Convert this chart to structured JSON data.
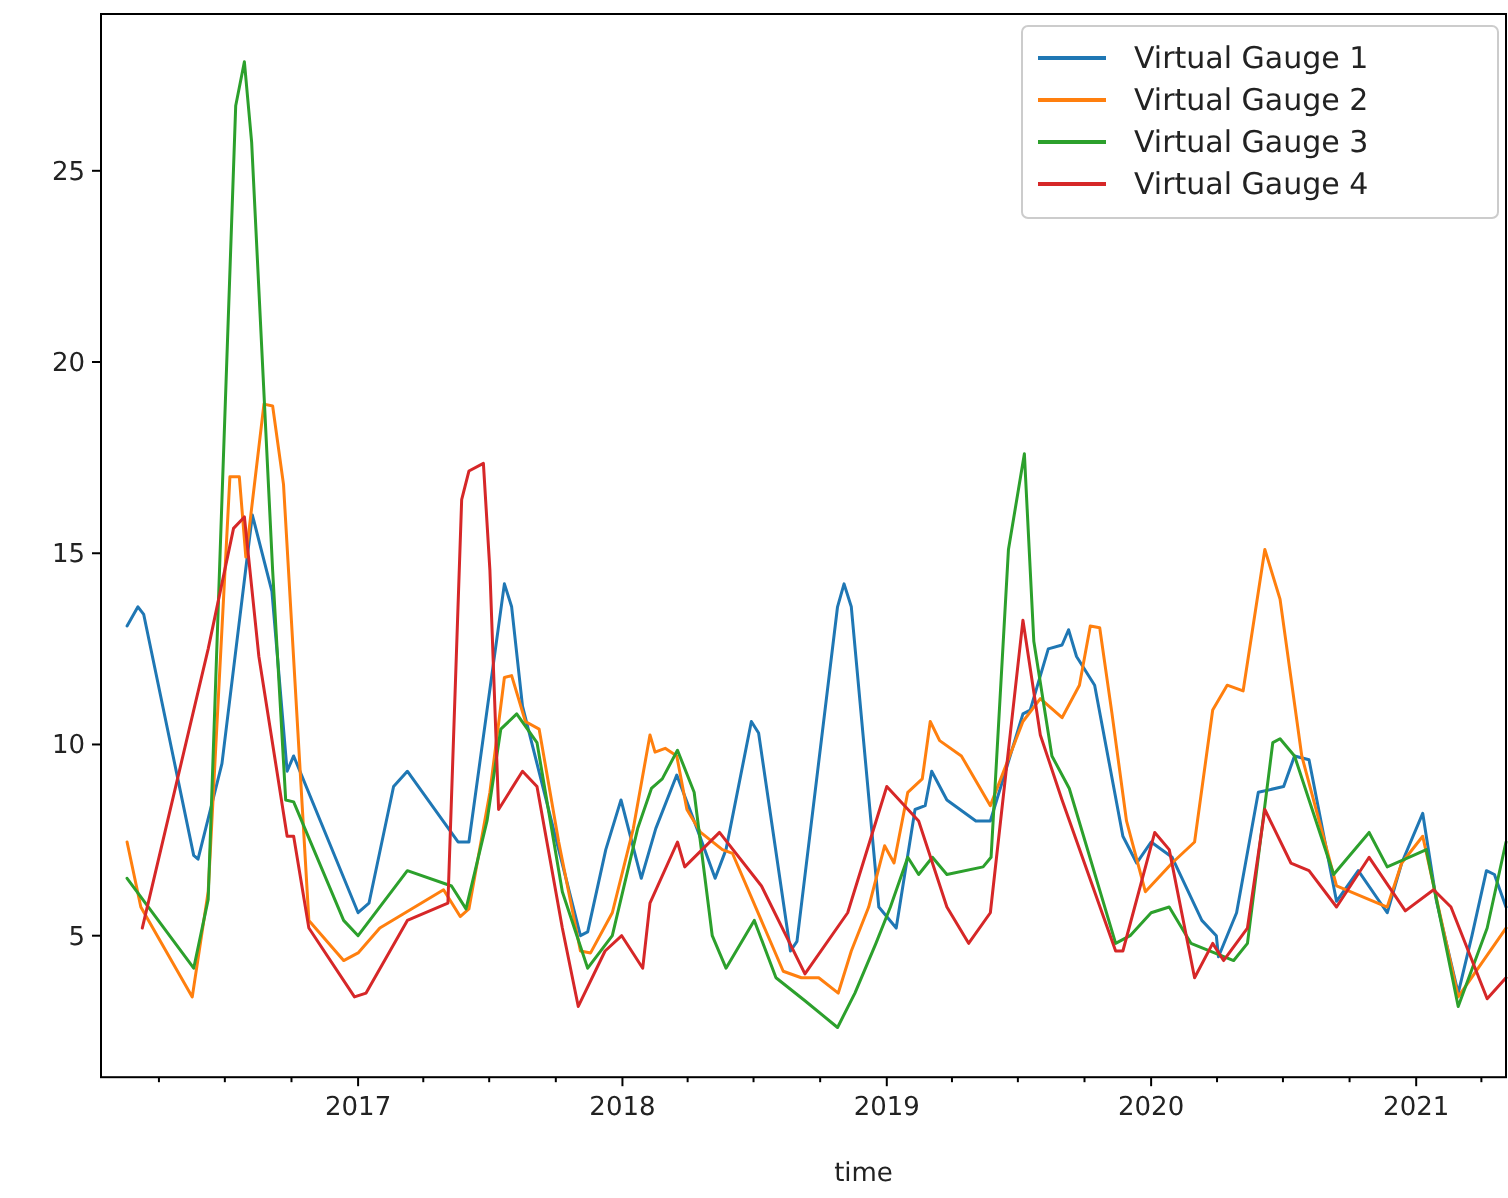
{
  "chart_data": {
    "type": "line",
    "xlabel": "time",
    "legend": "top right",
    "line_style": "solid",
    "marker": "none",
    "xlim": [
      "2016-01-12",
      "2021-05-05"
    ],
    "ylim": [
      1.3,
      29.1
    ],
    "yticks": [
      5,
      10,
      15,
      20,
      25
    ],
    "xticks": [
      {
        "value": "2016-04-01",
        "label": null
      },
      {
        "value": "2016-07-01",
        "label": null
      },
      {
        "value": "2016-10-01",
        "label": null
      },
      {
        "value": "2017-01-01",
        "label": "2017"
      },
      {
        "value": "2017-04-01",
        "label": null
      },
      {
        "value": "2017-07-01",
        "label": null
      },
      {
        "value": "2017-10-01",
        "label": null
      },
      {
        "value": "2018-01-01",
        "label": "2018"
      },
      {
        "value": "2018-04-01",
        "label": null
      },
      {
        "value": "2018-07-01",
        "label": null
      },
      {
        "value": "2018-10-01",
        "label": null
      },
      {
        "value": "2019-01-01",
        "label": "2019"
      },
      {
        "value": "2019-04-01",
        "label": null
      },
      {
        "value": "2019-07-01",
        "label": null
      },
      {
        "value": "2019-10-01",
        "label": null
      },
      {
        "value": "2020-01-01",
        "label": "2020"
      },
      {
        "value": "2020-04-01",
        "label": null
      },
      {
        "value": "2020-07-01",
        "label": null
      },
      {
        "value": "2020-10-01",
        "label": null
      },
      {
        "value": "2021-01-01",
        "label": "2021"
      },
      {
        "value": "2021-04-01",
        "label": null
      }
    ],
    "series": [
      {
        "name": "Virtual Gauge 1",
        "color": "#1f77b4",
        "x": [
          "2016-02-17",
          "2016-03-03",
          "2016-03-11",
          "2016-05-19",
          "2016-05-25",
          "2016-06-27",
          "2016-08-08",
          "2016-09-04",
          "2016-09-25",
          "2016-10-04",
          "2017-01-01",
          "2017-01-16",
          "2017-02-19",
          "2017-03-10",
          "2017-05-19",
          "2017-06-03",
          "2017-07-22",
          "2017-08-01",
          "2017-08-16",
          "2017-11-04",
          "2017-11-14",
          "2017-12-09",
          "2017-12-30",
          "2018-01-27",
          "2018-02-16",
          "2018-03-17",
          "2018-04-14",
          "2018-05-09",
          "2018-05-24",
          "2018-06-28",
          "2018-07-08",
          "2018-08-21",
          "2018-08-30",
          "2018-10-25",
          "2018-11-03",
          "2018-11-13",
          "2018-12-21",
          "2019-01-14",
          "2019-02-09",
          "2019-02-23",
          "2019-03-04",
          "2019-03-25",
          "2019-05-04",
          "2019-05-24",
          "2019-07-08",
          "2019-07-18",
          "2019-08-12",
          "2019-08-31",
          "2019-09-09",
          "2019-09-20",
          "2019-10-15",
          "2019-11-23",
          "2019-12-12",
          "2020-01-01",
          "2020-01-30",
          "2020-03-11",
          "2020-03-31",
          "2020-04-03",
          "2020-04-28",
          "2020-05-28",
          "2020-07-02",
          "2020-07-17",
          "2020-08-06",
          "2020-09-13",
          "2020-10-13",
          "2020-11-22",
          "2020-12-12",
          "2021-01-10",
          "2021-01-29",
          "2021-02-28",
          "2021-03-19",
          "2021-04-08",
          "2021-04-19",
          "2021-05-05"
        ],
        "values": [
          13.1,
          13.6,
          13.4,
          7.1,
          7.0,
          9.5,
          16.0,
          14.0,
          9.3,
          9.7,
          5.6,
          5.85,
          8.9,
          9.3,
          7.45,
          7.45,
          14.2,
          13.6,
          11.0,
          5.0,
          5.1,
          7.25,
          8.55,
          6.5,
          7.8,
          9.2,
          7.8,
          6.5,
          7.25,
          10.6,
          10.3,
          4.6,
          4.85,
          13.6,
          14.2,
          13.6,
          5.75,
          5.2,
          8.3,
          8.4,
          9.3,
          8.55,
          8.0,
          8.0,
          10.8,
          10.9,
          12.5,
          12.6,
          13.0,
          12.3,
          11.55,
          7.6,
          6.9,
          7.45,
          7.05,
          5.4,
          5.0,
          4.45,
          5.6,
          8.75,
          8.9,
          9.7,
          9.6,
          5.9,
          6.7,
          5.6,
          6.9,
          8.2,
          5.9,
          3.5,
          5.0,
          6.7,
          6.6,
          5.75
        ]
      },
      {
        "name": "Virtual Gauge 2",
        "color": "#ff7f0e",
        "x": [
          "2016-02-17",
          "2016-03-07",
          "2016-05-17",
          "2016-06-08",
          "2016-07-08",
          "2016-07-21",
          "2016-07-30",
          "2016-08-24",
          "2016-09-05",
          "2016-09-20",
          "2016-10-25",
          "2016-12-12",
          "2017-01-01",
          "2017-01-31",
          "2017-04-29",
          "2017-05-22",
          "2017-06-03",
          "2017-07-02",
          "2017-07-22",
          "2017-08-01",
          "2017-08-20",
          "2017-09-08",
          "2017-10-05",
          "2017-11-04",
          "2017-11-18",
          "2017-12-18",
          "2018-01-16",
          "2018-02-08",
          "2018-02-15",
          "2018-03-01",
          "2018-03-17",
          "2018-03-31",
          "2018-04-19",
          "2018-05-19",
          "2018-06-02",
          "2018-08-11",
          "2018-09-05",
          "2018-09-29",
          "2018-10-26",
          "2018-11-13",
          "2018-12-07",
          "2018-12-29",
          "2019-01-11",
          "2019-01-30",
          "2019-02-19",
          "2019-03-02",
          "2019-03-15",
          "2019-04-14",
          "2019-05-24",
          "2019-07-08",
          "2019-08-01",
          "2019-08-31",
          "2019-09-24",
          "2019-10-09",
          "2019-10-22",
          "2019-11-08",
          "2019-11-28",
          "2019-12-24",
          "2020-01-30",
          "2020-03-01",
          "2020-03-26",
          "2020-04-15",
          "2020-05-07",
          "2020-06-06",
          "2020-06-27",
          "2020-07-27",
          "2020-09-13",
          "2020-11-22",
          "2020-12-12",
          "2021-01-10",
          "2021-02-28",
          "2021-05-05"
        ],
        "values": [
          7.45,
          5.75,
          3.4,
          6.15,
          17.0,
          17.0,
          14.9,
          18.9,
          18.85,
          16.8,
          5.4,
          4.35,
          4.55,
          5.2,
          6.2,
          5.5,
          5.7,
          8.75,
          11.75,
          11.8,
          10.6,
          10.4,
          7.45,
          4.6,
          4.55,
          5.6,
          7.8,
          10.25,
          9.8,
          9.9,
          9.7,
          8.3,
          7.7,
          7.25,
          7.15,
          4.07,
          3.9,
          3.9,
          3.5,
          4.6,
          5.75,
          7.35,
          6.9,
          8.75,
          9.1,
          10.6,
          10.1,
          9.7,
          8.4,
          10.6,
          11.2,
          10.7,
          11.55,
          13.1,
          13.05,
          10.8,
          8.0,
          6.15,
          6.9,
          7.45,
          10.9,
          11.55,
          11.4,
          15.1,
          13.8,
          9.7,
          6.3,
          5.75,
          6.9,
          7.6,
          3.4,
          5.2
        ]
      },
      {
        "name": "Virtual Gauge 3",
        "color": "#2ca02c",
        "x": [
          "2016-02-17",
          "2016-05-19",
          "2016-06-08",
          "2016-06-27",
          "2016-07-16",
          "2016-07-28",
          "2016-08-07",
          "2016-09-05",
          "2016-09-23",
          "2016-10-04",
          "2016-12-12",
          "2017-01-01",
          "2017-03-10",
          "2017-05-10",
          "2017-05-30",
          "2017-06-28",
          "2017-07-17",
          "2017-08-08",
          "2017-09-05",
          "2017-10-10",
          "2017-11-14",
          "2017-12-18",
          "2018-01-22",
          "2018-02-10",
          "2018-02-25",
          "2018-03-18",
          "2018-04-10",
          "2018-05-05",
          "2018-05-24",
          "2018-07-02",
          "2018-08-01",
          "2018-09-10",
          "2018-10-25",
          "2018-11-18",
          "2018-12-17",
          "2019-01-06",
          "2019-01-30",
          "2019-02-14",
          "2019-03-05",
          "2019-03-25",
          "2019-05-14",
          "2019-05-25",
          "2019-06-18",
          "2019-07-10",
          "2019-07-23",
          "2019-08-17",
          "2019-09-10",
          "2019-11-13",
          "2019-12-03",
          "2020-01-01",
          "2020-01-26",
          "2020-02-25",
          "2020-04-24",
          "2020-05-13",
          "2020-06-17",
          "2020-06-27",
          "2020-07-17",
          "2020-09-09",
          "2020-10-28",
          "2020-11-22",
          "2020-12-22",
          "2021-01-15",
          "2021-02-28",
          "2021-04-09",
          "2021-05-05"
        ],
        "values": [
          6.5,
          4.15,
          5.95,
          16.4,
          26.7,
          27.85,
          25.75,
          14.55,
          8.55,
          8.5,
          5.4,
          5.0,
          6.7,
          6.3,
          5.7,
          8.0,
          10.4,
          10.8,
          10.05,
          6.15,
          4.15,
          5.0,
          7.8,
          8.85,
          9.1,
          9.85,
          8.75,
          5.0,
          4.15,
          5.4,
          3.9,
          3.3,
          2.6,
          3.5,
          4.8,
          5.75,
          7.05,
          6.6,
          7.05,
          6.6,
          6.8,
          7.05,
          15.1,
          17.6,
          12.7,
          9.7,
          8.85,
          4.8,
          5.0,
          5.6,
          5.75,
          4.8,
          4.35,
          4.8,
          10.05,
          10.15,
          9.7,
          6.6,
          7.7,
          6.8,
          7.05,
          7.25,
          3.15,
          5.2,
          7.45
        ]
      },
      {
        "name": "Virtual Gauge 4",
        "color": "#d62728",
        "x": [
          "2016-03-09",
          "2016-06-08",
          "2016-07-13",
          "2016-07-28",
          "2016-08-17",
          "2016-09-25",
          "2016-10-04",
          "2016-10-25",
          "2016-12-27",
          "2017-01-12",
          "2017-03-10",
          "2017-05-05",
          "2017-05-24",
          "2017-06-03",
          "2017-06-23",
          "2017-07-02",
          "2017-07-14",
          "2017-08-16",
          "2017-09-05",
          "2017-10-10",
          "2017-11-01",
          "2017-12-08",
          "2017-12-31",
          "2018-01-29",
          "2018-02-08",
          "2018-03-18",
          "2018-03-28",
          "2018-05-15",
          "2018-07-12",
          "2018-09-10",
          "2018-11-08",
          "2019-01-01",
          "2019-02-14",
          "2019-03-25",
          "2019-04-24",
          "2019-05-24",
          "2019-07-08",
          "2019-08-01",
          "2019-08-31",
          "2019-11-13",
          "2019-11-23",
          "2020-01-06",
          "2020-01-26",
          "2020-03-01",
          "2020-03-26",
          "2020-04-10",
          "2020-05-13",
          "2020-06-06",
          "2020-07-12",
          "2020-08-06",
          "2020-09-13",
          "2020-10-28",
          "2020-12-17",
          "2021-01-25",
          "2021-02-18",
          "2021-04-09",
          "2021-05-05"
        ],
        "values": [
          5.2,
          12.5,
          15.65,
          15.95,
          12.3,
          7.6,
          7.6,
          5.2,
          3.4,
          3.5,
          5.4,
          5.85,
          16.4,
          17.15,
          17.35,
          14.55,
          8.3,
          9.3,
          8.9,
          5.2,
          3.15,
          4.6,
          5.0,
          4.15,
          5.85,
          7.45,
          6.8,
          7.7,
          6.3,
          4.0,
          5.6,
          8.9,
          8.0,
          5.75,
          4.8,
          5.6,
          13.25,
          10.25,
          8.55,
          4.6,
          4.6,
          7.7,
          7.25,
          3.9,
          4.8,
          4.35,
          5.2,
          8.3,
          6.9,
          6.7,
          5.75,
          7.05,
          5.65,
          6.2,
          5.75,
          3.35,
          3.9
        ]
      }
    ]
  }
}
